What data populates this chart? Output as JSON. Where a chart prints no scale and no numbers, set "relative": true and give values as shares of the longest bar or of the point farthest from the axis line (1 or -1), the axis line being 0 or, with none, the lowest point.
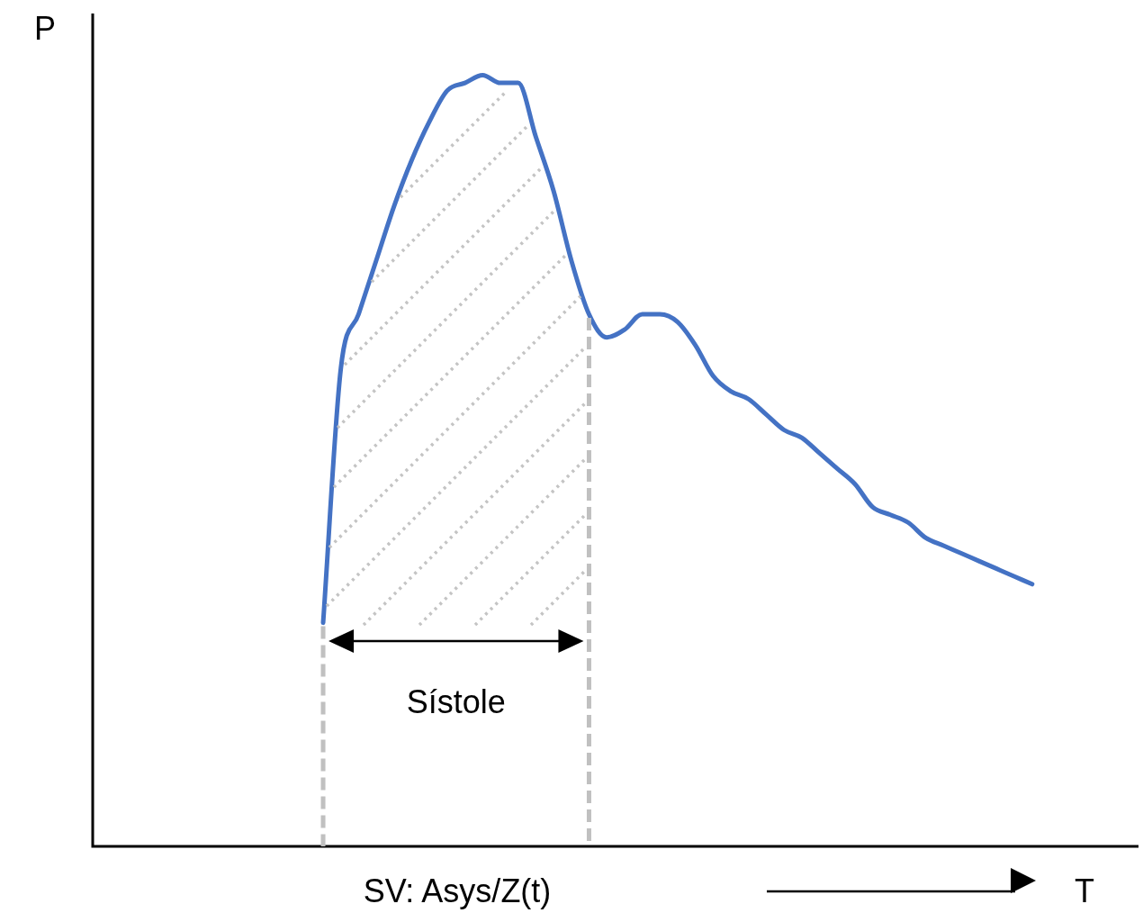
{
  "chart_data": {
    "type": "line",
    "relative": true,
    "xlabel": "T",
    "ylabel": "P",
    "marker": "none",
    "color": "#4472c4",
    "categories": [
      null,
      null,
      null,
      null,
      null,
      null,
      null,
      null,
      null,
      null,
      null,
      null,
      null,
      null,
      null,
      null,
      null,
      null,
      null,
      null,
      null,
      null,
      null,
      null,
      null,
      null,
      null,
      null,
      null,
      null,
      null,
      null,
      null,
      null,
      null,
      null,
      null,
      null,
      null,
      null,
      null,
      null,
      null,
      null,
      null,
      null,
      null,
      null,
      null,
      null,
      null,
      null,
      null,
      null,
      null,
      null,
      null,
      null,
      null,
      null
    ],
    "values": [
      null,
      null,
      null,
      null,
      null,
      null,
      null,
      null,
      null,
      null,
      null,
      null,
      null,
      0.29,
      0.62,
      0.69,
      0.76,
      0.83,
      0.89,
      0.94,
      0.98,
      0.99,
      1,
      0.99,
      0.99,
      0.92,
      0.85,
      0.76,
      0.69,
      0.66,
      0.67,
      0.69,
      0.69,
      0.68,
      0.65,
      0.61,
      0.59,
      0.58,
      0.56,
      0.54,
      0.53,
      0.51,
      0.49,
      0.47,
      0.44,
      0.43,
      0.42,
      0.4,
      0.39,
      0.38,
      0.37,
      0.36,
      0.35,
      0.34,
      null,
      null,
      null,
      null,
      null,
      null
    ],
    "annotations": [
      "Sístole",
      "SV: Asys/Z(t)"
    ]
  }
}
